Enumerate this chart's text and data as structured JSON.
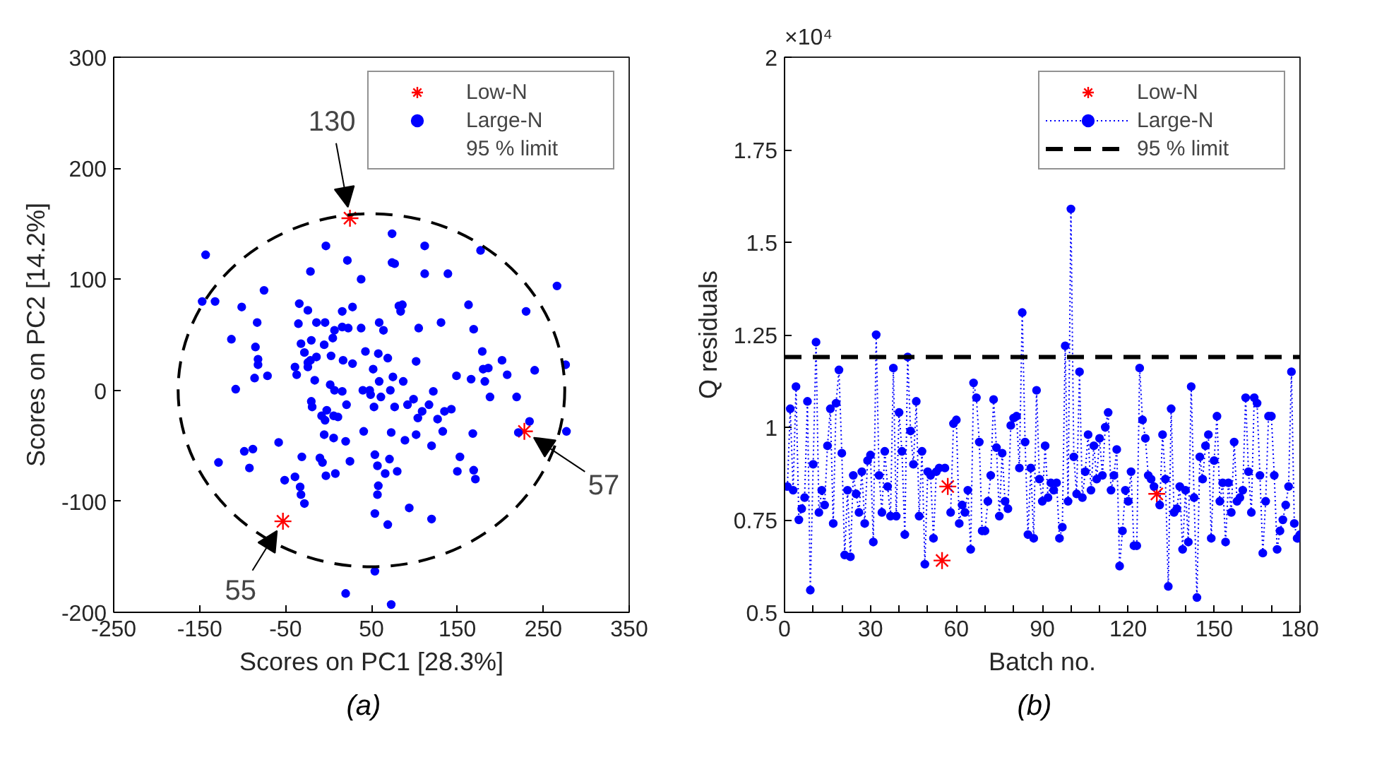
{
  "chart_data": [
    {
      "type": "scatter",
      "xlabel": "Scores on PC1 [28.3%]",
      "ylabel": "Scores on PC2 [14.2%]",
      "xlim": [
        -250,
        350
      ],
      "ylim": [
        -200,
        300
      ],
      "xticks": [
        -250,
        -150,
        -50,
        50,
        150,
        250,
        350
      ],
      "yticks": [
        -200,
        -100,
        0,
        100,
        200,
        300
      ],
      "grid": false,
      "legend": "top right",
      "series": [
        {
          "name": "Low-N",
          "marker": "cross",
          "color": "#ff0000",
          "x": [
            25,
            228,
            -53
          ],
          "values": [
            155,
            -37,
            -118
          ]
        },
        {
          "name": "Large-N",
          "marker": "circle",
          "color": "#0000ff",
          "x": [
            -143,
            -147,
            -132,
            -75,
            -21,
            -3,
            22,
            38,
            74,
            74,
            77,
            112,
            112,
            139,
            177,
            266,
            230,
            -101,
            -83,
            -113,
            -85,
            -82,
            -82,
            -86,
            -71,
            -108,
            -34,
            -24,
            -35,
            -14,
            -4,
            16,
            28,
            7,
            16,
            23,
            38,
            59,
            64,
            82,
            86,
            84,
            105,
            131,
            163,
            169,
            -32,
            -20,
            -28,
            -24,
            -21,
            -5,
            5,
            -39,
            -37,
            -24,
            -16,
            -14,
            3,
            17,
            28,
            43,
            58,
            69,
            102,
            52,
            59,
            75,
            87,
            2,
            7,
            16,
            40,
            48,
            72,
            49,
            21,
            -20,
            -19,
            -2,
            -8,
            -4,
            6,
            11,
            53,
            61,
            77,
            92,
            99,
            109,
            104,
            122,
            117,
            135,
            143,
            127,
            149,
            166,
            182,
            180,
            186,
            188,
            208,
            202,
            219,
            179,
            240,
            276,
            41,
            73,
            89,
            102,
            133,
            120,
            168,
            221,
            277,
            234,
            -5,
            6,
            -58,
            -88,
            -98,
            -128,
            -92,
            -31,
            -10,
            -7,
            -3,
            8,
            25,
            54,
            57,
            71,
            66,
            80,
            153,
            150,
            169,
            171,
            -39,
            -51,
            -33,
            -32,
            -28,
            58,
            57,
            94,
            54,
            69,
            120,
            54,
            20,
            73,
            20
          ],
          "values": [
            122,
            80,
            80,
            90,
            107,
            130,
            117,
            100,
            141,
            115,
            114,
            130,
            105,
            105,
            126,
            94,
            71,
            75,
            61,
            46,
            39,
            28,
            23,
            11,
            13,
            1,
            78,
            72,
            60,
            61,
            61,
            71,
            75,
            54,
            57,
            56,
            56,
            61,
            54,
            76,
            77,
            71,
            56,
            61,
            77,
            55,
            42,
            45,
            34,
            25,
            27,
            41,
            47,
            21,
            14,
            21,
            9,
            30,
            31,
            27,
            24,
            35,
            33,
            29,
            26,
            19,
            8,
            12,
            8,
            5,
            0,
            -1,
            0,
            0,
            0,
            -4,
            -13,
            -10,
            -15,
            -18,
            -23,
            -27,
            -23,
            -24,
            -15,
            -6,
            -15,
            -13,
            -8,
            -19,
            -25,
            -1,
            -13,
            -19,
            -17,
            -26,
            13,
            10,
            8,
            19,
            20,
            -6,
            14,
            27,
            -6,
            35,
            18,
            23,
            -37,
            -38,
            -45,
            -40,
            -37,
            -50,
            -39,
            -38,
            -37,
            -28,
            -40,
            -43,
            -47,
            -53,
            -55,
            -65,
            -70,
            -60,
            -61,
            -65,
            -77,
            -75,
            -64,
            -58,
            -68,
            -62,
            -75,
            -73,
            -60,
            -73,
            -72,
            -80,
            -78,
            -81,
            -87,
            -94,
            -102,
            -86,
            -94,
            -106,
            -111,
            -121,
            -116,
            -163,
            -183,
            -193,
            -46
          ]
        }
      ],
      "annotations": [
        {
          "text": "130",
          "x": 25,
          "y": 155
        },
        {
          "text": "57",
          "x": 228,
          "y": -37
        },
        {
          "text": "55",
          "x": -53,
          "y": -118
        },
        "95 % limit",
        "(a)"
      ]
    },
    {
      "type": "line",
      "xlabel": "Batch no.",
      "ylabel": "Q residuals",
      "xlim": [
        0,
        180
      ],
      "ylim": [
        0.5,
        2
      ],
      "xticks": [
        0,
        {
          "value": 10,
          "label": null
        },
        {
          "value": 20,
          "label": null
        },
        30,
        {
          "value": 40,
          "label": null
        },
        {
          "value": 50,
          "label": null
        },
        60,
        {
          "value": 70,
          "label": null
        },
        {
          "value": 80,
          "label": null
        },
        90,
        {
          "value": 100,
          "label": null
        },
        {
          "value": 110,
          "label": null
        },
        120,
        {
          "value": 130,
          "label": null
        },
        {
          "value": 140,
          "label": null
        },
        150,
        {
          "value": 160,
          "label": null
        },
        {
          "value": 170,
          "label": null
        },
        180
      ],
      "yticks": [
        0.5,
        0.75,
        1,
        1.25,
        1.5,
        1.75,
        2
      ],
      "grid": false,
      "legend": "top right",
      "series": [
        {
          "name": "Low-N",
          "type": "scatter",
          "marker": "cross",
          "color": "#ff0000",
          "x": [
            55,
            57,
            130
          ],
          "values": [
            0.64,
            0.84,
            0.82
          ]
        },
        {
          "name": "Large-N",
          "marker": "circle",
          "line_style": "dotted",
          "color": "#0000ff",
          "x": [
            1,
            2,
            3,
            4,
            5,
            6,
            7,
            8,
            9,
            10,
            11,
            12,
            13,
            14,
            15,
            16,
            17,
            18,
            19,
            20,
            21,
            22,
            23,
            24,
            25,
            26,
            27,
            28,
            29,
            30,
            31,
            32,
            33,
            34,
            35,
            36,
            37,
            38,
            39,
            40,
            41,
            42,
            43,
            44,
            45,
            46,
            47,
            48,
            49,
            50,
            51,
            52,
            53,
            54,
            55,
            56,
            57,
            58,
            59,
            60,
            61,
            62,
            63,
            64,
            65,
            66,
            67,
            68,
            69,
            70,
            71,
            72,
            73,
            74,
            75,
            76,
            77,
            78,
            79,
            80,
            81,
            82,
            83,
            84,
            85,
            86,
            87,
            88,
            89,
            90,
            91,
            92,
            93,
            94,
            95,
            96,
            97,
            98,
            99,
            100,
            101,
            102,
            103,
            104,
            105,
            106,
            107,
            108,
            109,
            110,
            111,
            112,
            113,
            114,
            115,
            116,
            117,
            118,
            119,
            120,
            121,
            122,
            123,
            124,
            125,
            126,
            127,
            128,
            129,
            130,
            131,
            132,
            133,
            134,
            135,
            136,
            137,
            138,
            139,
            140,
            141,
            142,
            143,
            144,
            145,
            146,
            147,
            148,
            149,
            150,
            151,
            152,
            153,
            154,
            155,
            156,
            157,
            158,
            159,
            160,
            161,
            162,
            163,
            164,
            165,
            166,
            167,
            168,
            169,
            170,
            171,
            172,
            173,
            174,
            175,
            176,
            177,
            178,
            179,
            180
          ],
          "values": [
            0.84,
            1.05,
            0.83,
            1.11,
            0.75,
            0.78,
            0.81,
            1.07,
            0.56,
            0.9,
            1.23,
            0.77,
            0.83,
            0.79,
            0.95,
            1.05,
            0.74,
            1.065,
            1.155,
            0.93,
            0.655,
            0.83,
            0.65,
            0.87,
            0.82,
            0.77,
            0.88,
            0.74,
            0.91,
            0.925,
            0.69,
            1.25,
            0.87,
            0.77,
            0.935,
            0.84,
            0.76,
            1.16,
            0.76,
            1.04,
            0.935,
            0.71,
            1.19,
            0.99,
            0.9,
            1.07,
            0.76,
            0.935,
            0.63,
            0.88,
            0.87,
            0.7,
            0.88,
            0.89,
            null,
            0.89,
            null,
            0.77,
            1.01,
            1.02,
            0.74,
            0.79,
            0.77,
            0.83,
            0.67,
            1.12,
            1.08,
            0.96,
            0.72,
            0.72,
            0.8,
            0.87,
            1.075,
            0.945,
            0.76,
            0.93,
            0.8,
            0.78,
            1.005,
            1.025,
            1.03,
            0.89,
            1.31,
            0.96,
            0.71,
            0.89,
            0.7,
            1.1,
            0.86,
            0.8,
            0.95,
            0.81,
            0.85,
            0.83,
            0.85,
            0.7,
            0.73,
            1.22,
            0.8,
            1.59,
            0.92,
            0.82,
            1.15,
            0.81,
            0.88,
            0.98,
            0.83,
            0.95,
            0.86,
            0.97,
            0.87,
            1.0,
            1.04,
            0.83,
            0.87,
            0.94,
            0.625,
            0.72,
            0.83,
            0.8,
            0.88,
            0.68,
            0.68,
            1.16,
            1.02,
            0.97,
            0.87,
            0.86,
            0.84,
            null,
            0.79,
            0.98,
            0.86,
            0.57,
            1.05,
            0.77,
            0.78,
            0.84,
            0.67,
            0.83,
            0.69,
            1.11,
            0.81,
            0.54,
            0.92,
            0.86,
            0.95,
            0.98,
            0.7,
            0.91,
            1.03,
            0.8,
            0.85,
            0.69,
            0.85,
            0.77,
            0.96,
            0.8,
            0.81,
            0.83,
            1.08,
            0.88,
            0.77,
            1.08,
            1.065,
            0.87,
            0.66,
            0.8,
            1.03,
            1.03,
            0.87,
            0.67,
            0.72,
            0.75,
            0.79,
            0.84,
            1.15,
            0.74,
            0.7,
            0.71
          ]
        }
      ],
      "ref_lines": [
        {
          "axis": "y",
          "value": 1.19,
          "label": "95 % limit",
          "color": "#000000",
          "line_style": "dashed"
        }
      ],
      "annotations": [
        "×10⁴",
        "(b)"
      ]
    }
  ]
}
